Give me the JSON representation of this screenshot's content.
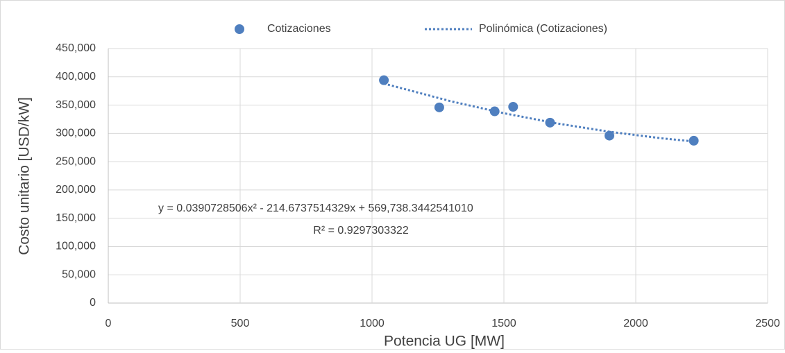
{
  "chart_data": {
    "type": "scatter",
    "x_label": "Potencia UG [MW]",
    "y_label": "Costo unitario [USD/kW]",
    "series": [
      {
        "name": "Cotizaciones",
        "color": "#4f7fbf",
        "x": [
          1045,
          1255,
          1465,
          1535,
          1675,
          1900,
          2220
        ],
        "values": [
          394000,
          346000,
          339000,
          347000,
          319000,
          296000,
          287000
        ]
      },
      {
        "name": "Polinómica (Cotizaciones)",
        "color": "#4f7fbf",
        "style": "dotted",
        "x": [
          1045,
          1300,
          1500,
          1700,
          1900,
          2100,
          2220
        ],
        "values": [
          388072,
          356695,
          335641,
          317712,
          302910,
          291234,
          285729
        ]
      }
    ],
    "annotations": [
      "y = 0.0390728506x² - 214.6737514329x + 569,738.3442541010",
      "R² = 0.9297303322"
    ],
    "xlim": [
      0,
      2500
    ],
    "xticks": [
      0,
      500,
      1000,
      1500,
      2000,
      2500
    ],
    "ylim": [
      0,
      450000
    ],
    "yticks": [
      {
        "value": 0,
        "label": "0"
      },
      {
        "value": 50000,
        "label": "50,000"
      },
      {
        "value": 100000,
        "label": "100,000"
      },
      {
        "value": 150000,
        "label": "150,000"
      },
      {
        "value": 200000,
        "label": "200,000"
      },
      {
        "value": 250000,
        "label": "250,000"
      },
      {
        "value": 300000,
        "label": "300,000"
      },
      {
        "value": 350000,
        "label": "350,000"
      },
      {
        "value": 400000,
        "label": "400,000"
      },
      {
        "value": 450000,
        "label": "450,000"
      }
    ],
    "grid": true,
    "legend": "top"
  }
}
